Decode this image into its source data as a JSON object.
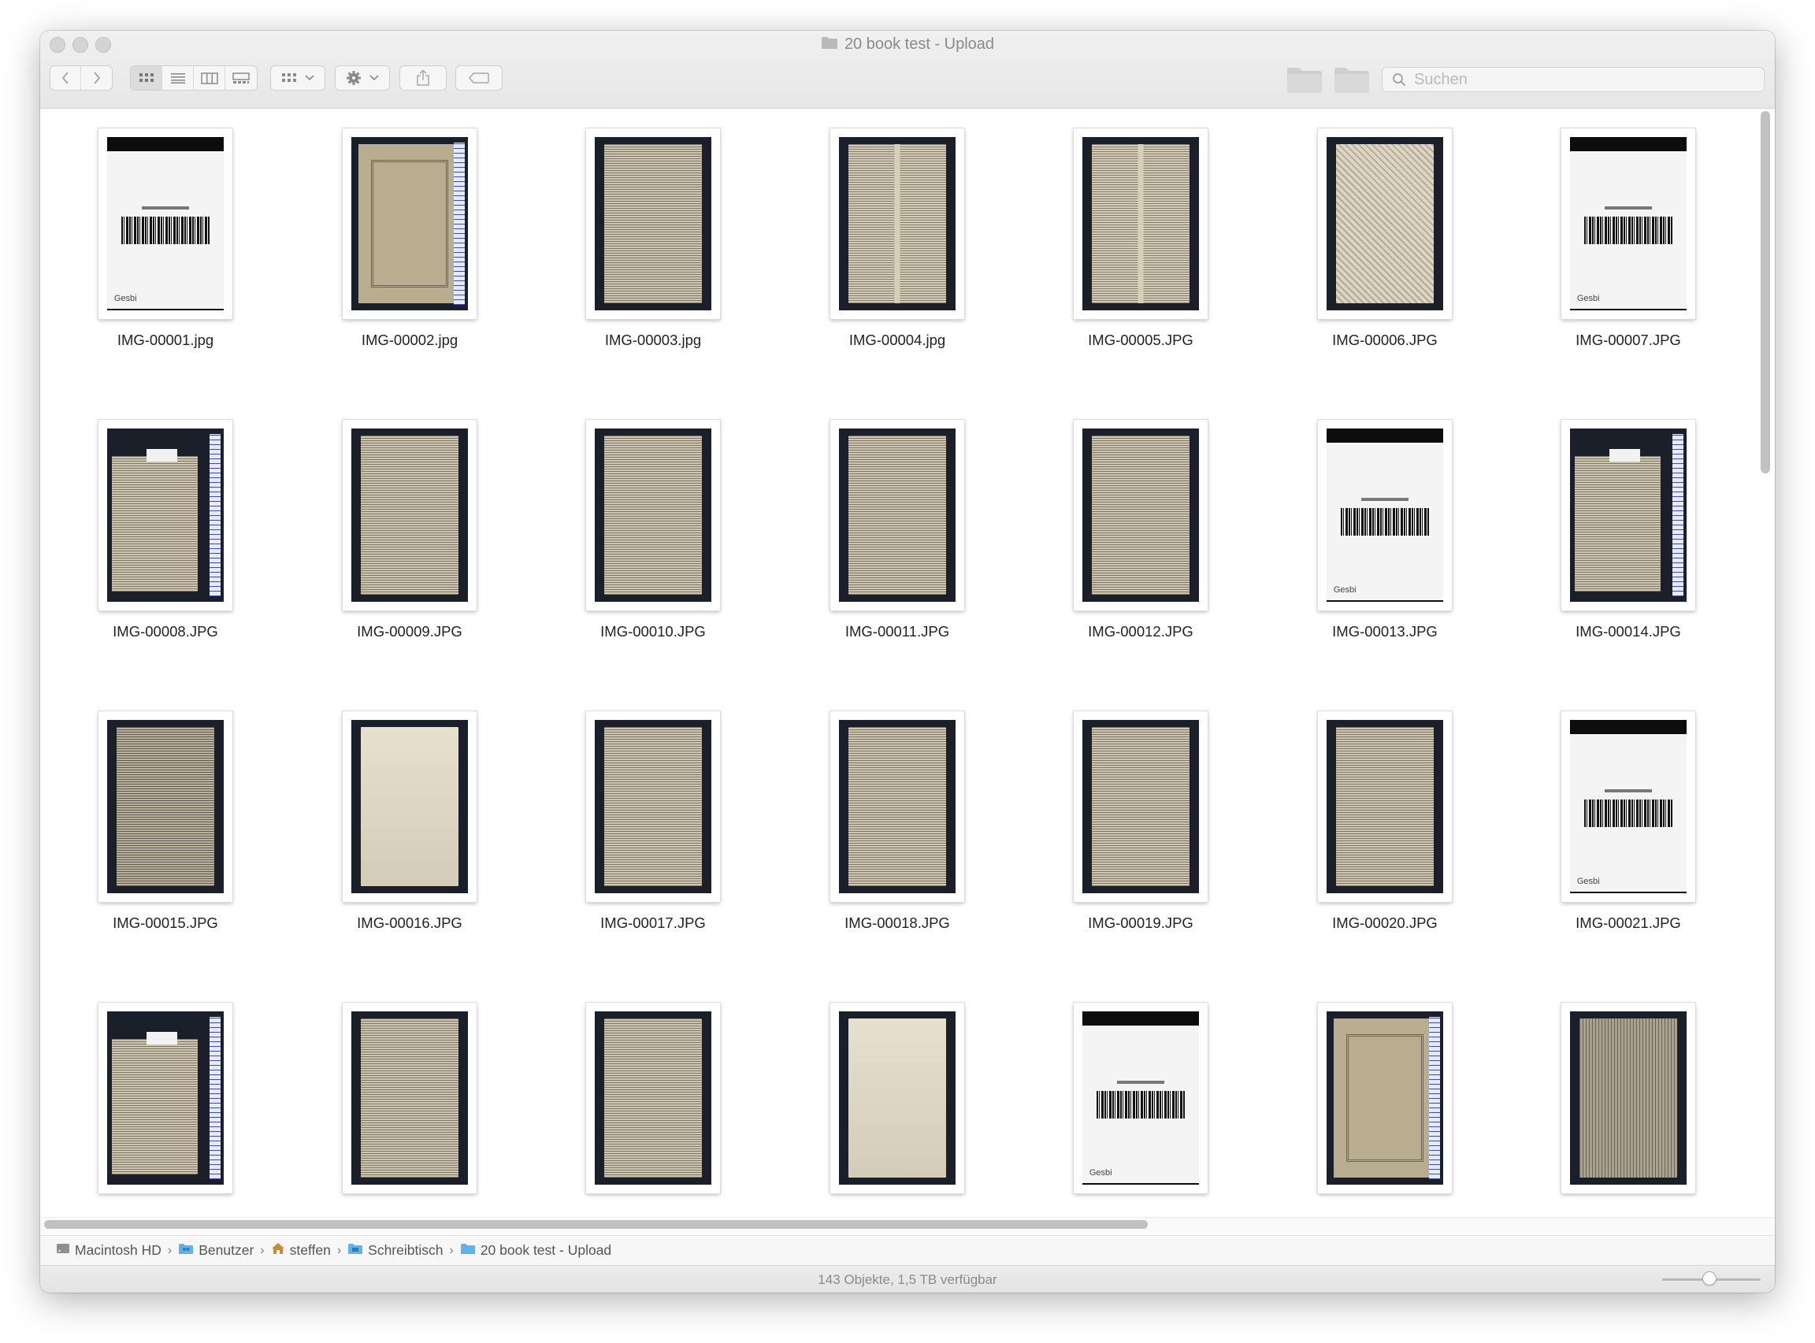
{
  "window": {
    "title": "20 book test - Upload"
  },
  "toolbar": {
    "search_placeholder": "Suchen"
  },
  "files": [
    {
      "name": "IMG-00001.jpg",
      "kind": "barcode"
    },
    {
      "name": "IMG-00002.jpg",
      "kind": "cover"
    },
    {
      "name": "IMG-00003.jpg",
      "kind": "text"
    },
    {
      "name": "IMG-00004.jpg",
      "kind": "twocol"
    },
    {
      "name": "IMG-00005.JPG",
      "kind": "twocol"
    },
    {
      "name": "IMG-00006.JPG",
      "kind": "pattern"
    },
    {
      "name": "IMG-00007.JPG",
      "kind": "barcode"
    },
    {
      "name": "IMG-00008.JPG",
      "kind": "book"
    },
    {
      "name": "IMG-00009.JPG",
      "kind": "text"
    },
    {
      "name": "IMG-00010.JPG",
      "kind": "text"
    },
    {
      "name": "IMG-00011.JPG",
      "kind": "text"
    },
    {
      "name": "IMG-00012.JPG",
      "kind": "text"
    },
    {
      "name": "IMG-00013.JPG",
      "kind": "barcode"
    },
    {
      "name": "IMG-00014.JPG",
      "kind": "book"
    },
    {
      "name": "IMG-00015.JPG",
      "kind": "dark"
    },
    {
      "name": "IMG-00016.JPG",
      "kind": "plain"
    },
    {
      "name": "IMG-00017.JPG",
      "kind": "text"
    },
    {
      "name": "IMG-00018.JPG",
      "kind": "text"
    },
    {
      "name": "IMG-00019.JPG",
      "kind": "text"
    },
    {
      "name": "IMG-00020.JPG",
      "kind": "text"
    },
    {
      "name": "IMG-00021.JPG",
      "kind": "barcode"
    },
    {
      "name": "",
      "kind": "book"
    },
    {
      "name": "",
      "kind": "text"
    },
    {
      "name": "",
      "kind": "text"
    },
    {
      "name": "",
      "kind": "plain"
    },
    {
      "name": "",
      "kind": "barcode"
    },
    {
      "name": "",
      "kind": "cover"
    },
    {
      "name": "",
      "kind": "engrave"
    }
  ],
  "barcode_logo": "Gesbi",
  "pathbar": [
    {
      "label": "Macintosh HD",
      "icon": "hard-drive-icon"
    },
    {
      "label": "Benutzer",
      "icon": "users-folder-icon"
    },
    {
      "label": "steffen",
      "icon": "home-icon"
    },
    {
      "label": "Schreibtisch",
      "icon": "desktop-folder-icon"
    },
    {
      "label": "20 book test - Upload",
      "icon": "folder-icon"
    }
  ],
  "status": {
    "text": "143 Objekte, 1,5 TB verfügbar",
    "icon_size_fraction": 0.48
  },
  "colors": {
    "folder_blue": "#5fb3ea",
    "chrome_gray": "#e9e9e9",
    "scrollbar": "#c1c1c1"
  }
}
